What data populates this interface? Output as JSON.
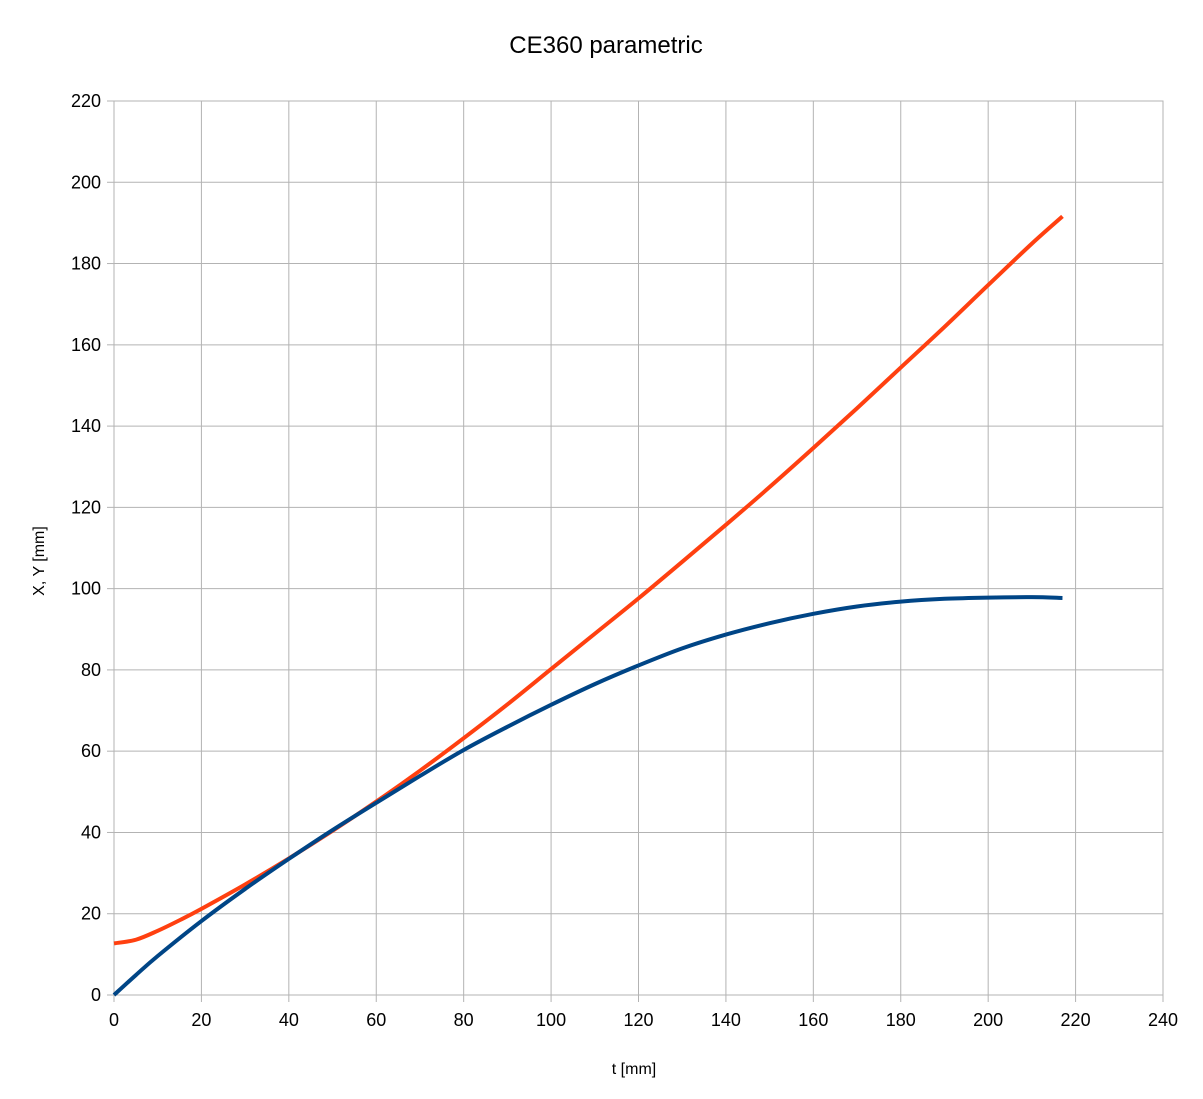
{
  "chart_data": {
    "type": "line",
    "title": "CE360 parametric",
    "xlabel": "t [mm]",
    "ylabel": "X,  Y [mm]",
    "xlim": [
      0,
      240
    ],
    "ylim": [
      0,
      220
    ],
    "xticks": [
      0,
      20,
      40,
      60,
      80,
      100,
      120,
      140,
      160,
      180,
      200,
      220,
      240
    ],
    "yticks": [
      0,
      20,
      40,
      60,
      80,
      100,
      120,
      140,
      160,
      180,
      200,
      220
    ],
    "grid": true,
    "legend": "none",
    "series": [
      {
        "color": "#ff4010",
        "x": [
          0,
          5,
          10,
          15,
          20,
          30,
          40,
          50,
          60,
          70,
          80,
          90,
          100,
          110,
          120,
          130,
          140,
          150,
          160,
          170,
          180,
          190,
          200,
          210,
          217
        ],
        "y": [
          12.7,
          13.6,
          15.8,
          18.4,
          21.2,
          27.2,
          33.6,
          40.4,
          47.6,
          55.2,
          63.2,
          71.5,
          80.2,
          88.9,
          97.6,
          106.6,
          115.7,
          125.0,
          134.6,
          144.4,
          154.4,
          164.4,
          174.7,
          184.9,
          191.6
        ]
      },
      {
        "color": "#004586",
        "x": [
          0,
          5,
          10,
          20,
          30,
          40,
          50,
          60,
          70,
          80,
          90,
          100,
          110,
          120,
          130,
          140,
          150,
          160,
          170,
          180,
          190,
          200,
          210,
          217
        ],
        "y": [
          0,
          4.9,
          9.6,
          18.2,
          26.1,
          33.5,
          40.6,
          47.3,
          53.9,
          60.3,
          66.0,
          71.4,
          76.5,
          81.1,
          85.3,
          88.7,
          91.5,
          93.8,
          95.6,
          96.8,
          97.5,
          97.8,
          97.9,
          97.7
        ]
      }
    ]
  }
}
